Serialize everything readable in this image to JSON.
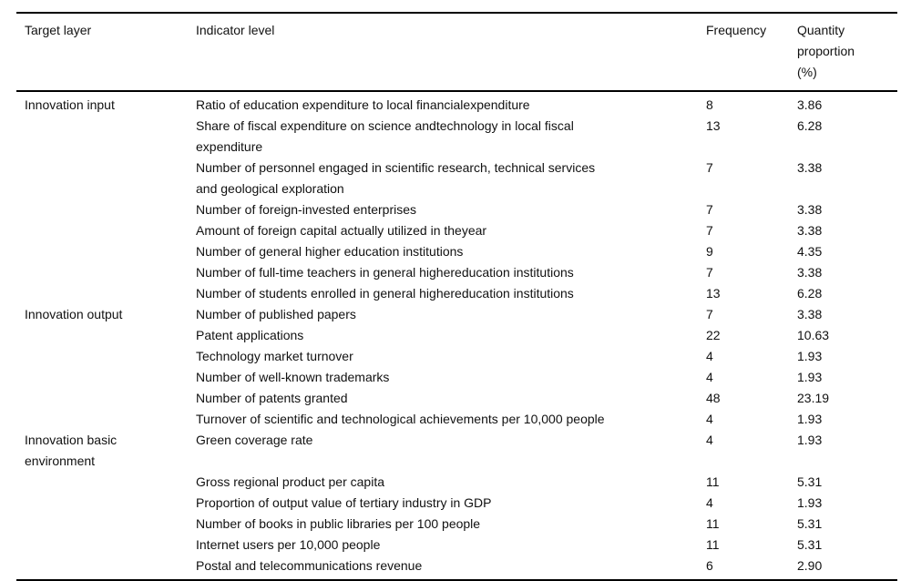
{
  "table": {
    "headers": {
      "target_layer": "Target layer",
      "indicator_level": "Indicator level",
      "frequency": "Frequency",
      "quantity_proportion": "Quantity\nproportion\n(%)"
    },
    "rows": [
      {
        "target": "Innovation input",
        "indicator": "Ratio of education expenditure to local financialexpenditure",
        "frequency": "8",
        "proportion": "3.86"
      },
      {
        "target": "",
        "indicator": "Share of fiscal expenditure on science andtechnology in local fiscal\nexpenditure",
        "frequency": "13",
        "proportion": "6.28"
      },
      {
        "target": "",
        "indicator": "Number of personnel engaged in scientific research, technical services\nand geological exploration",
        "frequency": "7",
        "proportion": "3.38"
      },
      {
        "target": "",
        "indicator": "Number of foreign-invested enterprises",
        "frequency": "7",
        "proportion": "3.38"
      },
      {
        "target": "",
        "indicator": "Amount of foreign capital actually utilized in theyear",
        "frequency": "7",
        "proportion": "3.38"
      },
      {
        "target": "",
        "indicator": "Number of general higher education institutions",
        "frequency": "9",
        "proportion": "4.35"
      },
      {
        "target": "",
        "indicator": "Number of full-time teachers in general highereducation institutions",
        "frequency": "7",
        "proportion": "3.38"
      },
      {
        "target": "",
        "indicator": "Number of students enrolled in general highereducation institutions",
        "frequency": "13",
        "proportion": "6.28"
      },
      {
        "target": "Innovation output",
        "indicator": "Number of published papers",
        "frequency": "7",
        "proportion": "3.38"
      },
      {
        "target": "",
        "indicator": "Patent applications",
        "frequency": "22",
        "proportion": "10.63"
      },
      {
        "target": "",
        "indicator": "Technology market turnover",
        "frequency": "4",
        "proportion": "1.93"
      },
      {
        "target": "",
        "indicator": "Number of well-known trademarks",
        "frequency": "4",
        "proportion": "1.93"
      },
      {
        "target": "",
        "indicator": "Number of patents granted",
        "frequency": "48",
        "proportion": "23.19"
      },
      {
        "target": "",
        "indicator": "Turnover of scientific and technological achievements per 10,000 people",
        "frequency": "4",
        "proportion": "1.93"
      },
      {
        "target": "Innovation basic\nenvironment",
        "indicator": "Green coverage rate",
        "frequency": "4",
        "proportion": "1.93"
      },
      {
        "target": "",
        "indicator": "Gross regional product per capita",
        "frequency": "11",
        "proportion": "5.31"
      },
      {
        "target": "",
        "indicator": "Proportion of output value of tertiary industry in GDP",
        "frequency": "4",
        "proportion": "1.93"
      },
      {
        "target": "",
        "indicator": "Number of books in public libraries per 100 people",
        "frequency": "11",
        "proportion": "5.31"
      },
      {
        "target": "",
        "indicator": "Internet users per 10,000 people",
        "frequency": "11",
        "proportion": "5.31"
      },
      {
        "target": "",
        "indicator": "Postal and telecommunications revenue",
        "frequency": "6",
        "proportion": "2.90"
      }
    ]
  }
}
